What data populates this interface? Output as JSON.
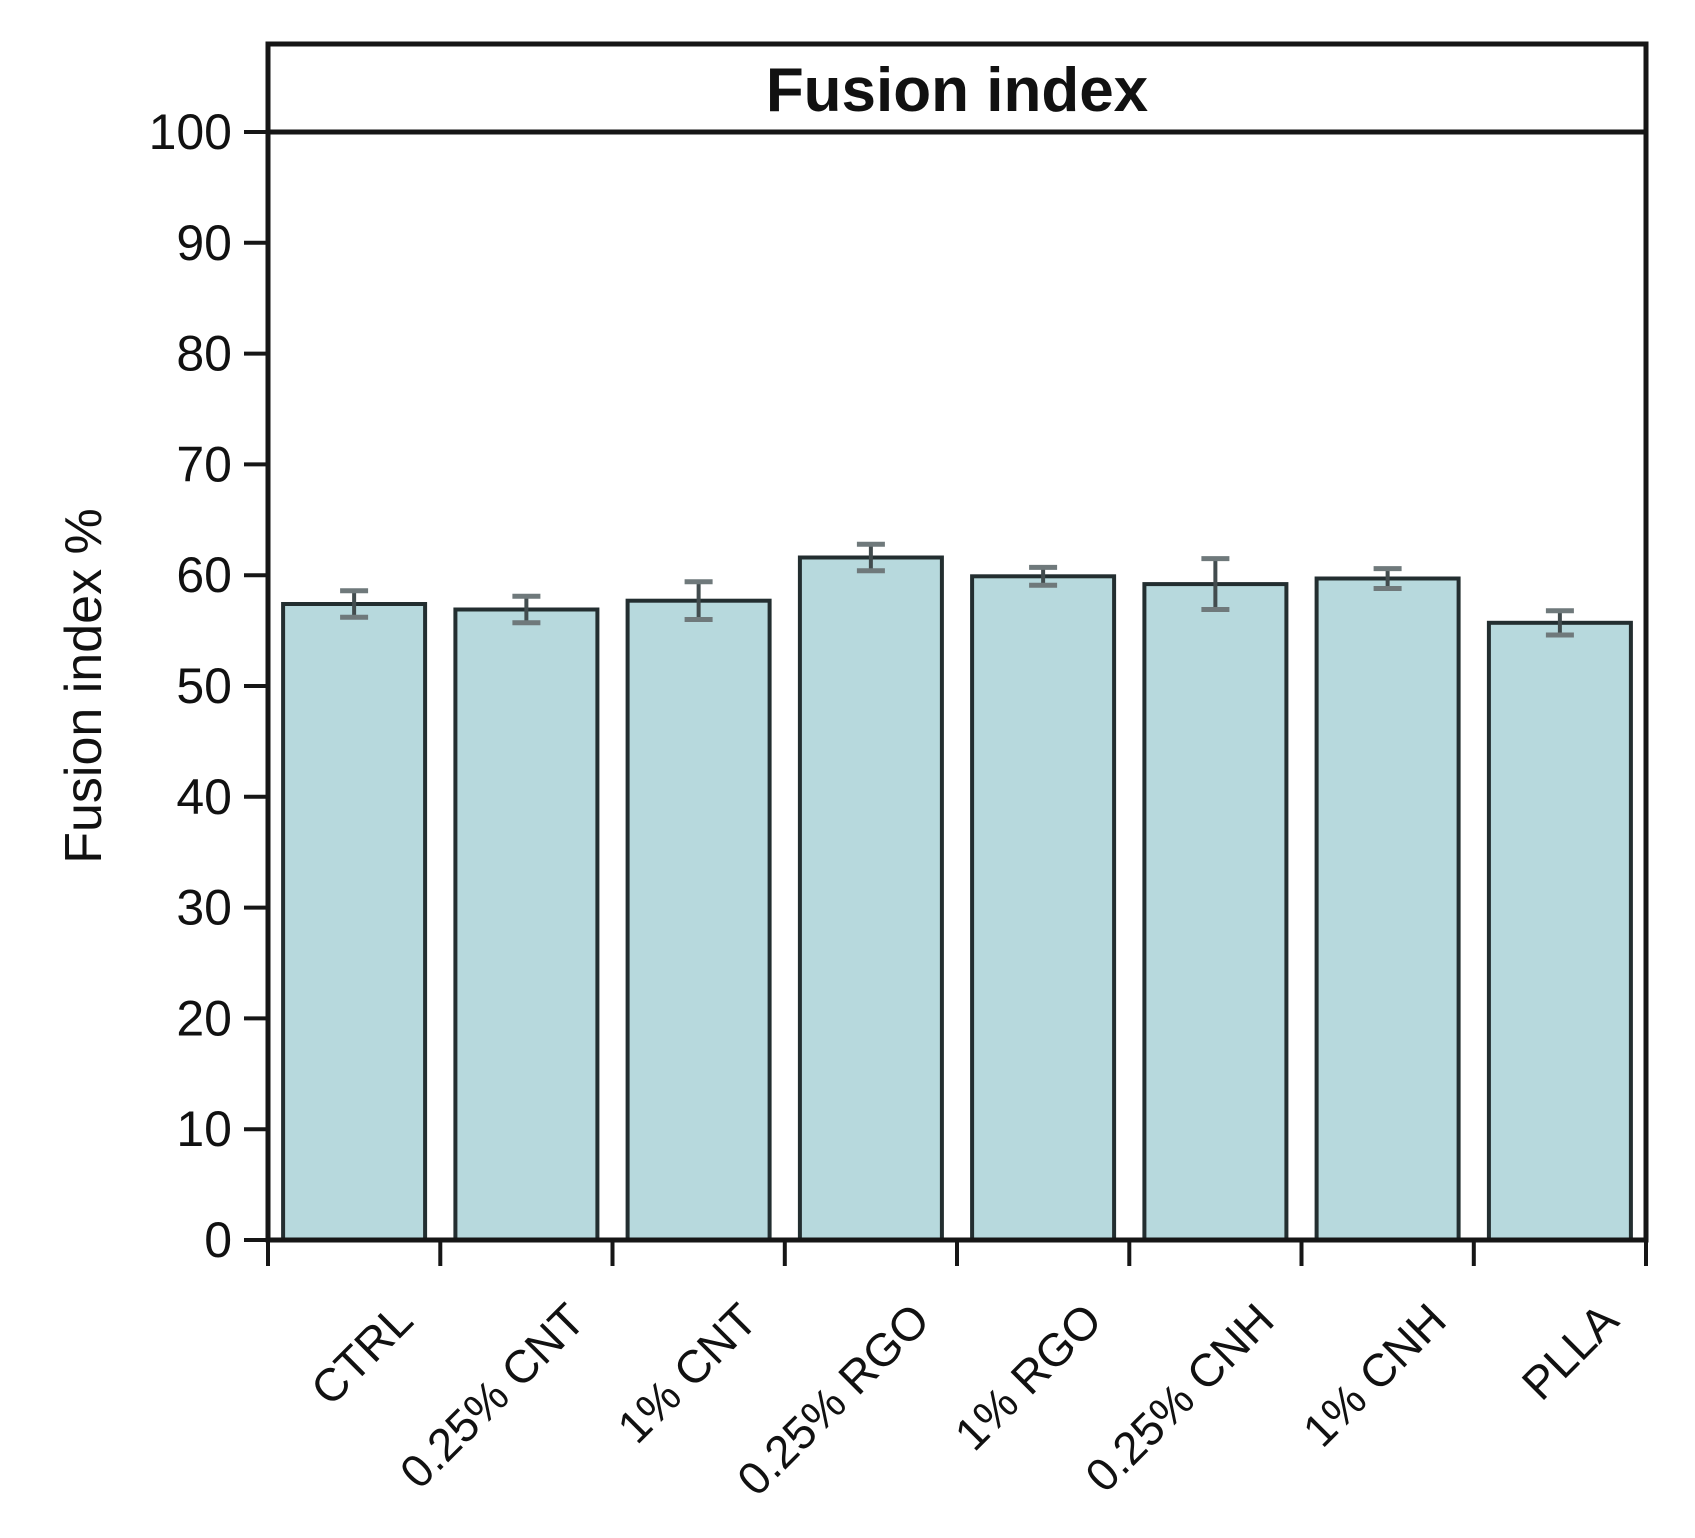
{
  "chart_data": {
    "type": "bar",
    "title": "Fusion index",
    "xlabel": "",
    "ylabel": "Fusion index %",
    "ylim": [
      0,
      100
    ],
    "ytick_step": 10,
    "yticks": [
      0,
      10,
      20,
      30,
      40,
      50,
      60,
      70,
      80,
      90,
      100
    ],
    "categories": [
      "CTRL",
      "0.25% CNT",
      "1% CNT",
      "0.25% RGO",
      "1% RGO",
      "0.25% CNH",
      "1% CNH",
      "PLLA"
    ],
    "series": [
      {
        "name": "Fusion index %",
        "values": [
          57.4,
          56.9,
          57.7,
          61.6,
          59.9,
          59.2,
          59.7,
          55.7
        ],
        "errors": [
          1.2,
          1.2,
          1.7,
          1.2,
          0.8,
          2.3,
          0.9,
          1.1
        ]
      }
    ],
    "grid": false,
    "legend": "none",
    "x_tick_label_rotation_deg": 45,
    "colors": {
      "bar_fill": "#b7d9dd",
      "bar_border": "#232e30",
      "axis": "#161616",
      "error_line": "#424c4e",
      "error_cap": "#6f797b",
      "text": "#111111",
      "background": "#ffffff"
    }
  }
}
